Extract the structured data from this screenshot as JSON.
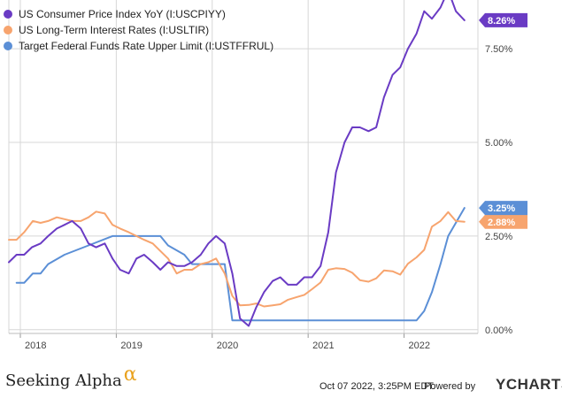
{
  "colors": {
    "cpi": "#6a3bc4",
    "interest": "#f7a46e",
    "fedfunds": "#5b8fd6",
    "grid": "#d7d7d7",
    "alpha_accent": "#e9a21e"
  },
  "footer": {
    "brand": "Seeking Alpha",
    "brand_mark": "α",
    "date": "Oct 07 2022, 3:25PM EDT.",
    "powered_by": "Powered by",
    "ycharts": "YCHARTS"
  },
  "chart_data": {
    "type": "line",
    "x_axis": {
      "min": 2017.88,
      "max": 2022.77,
      "ticks": [
        "2018",
        "2019",
        "2020",
        "2021",
        "2022"
      ],
      "tick_values": [
        2018,
        2019,
        2020,
        2021,
        2022
      ]
    },
    "y_axis": {
      "min": -0.1,
      "max": 8.8,
      "ticks": [
        "0.00%",
        "2.50%",
        "5.00%",
        "7.50%"
      ],
      "tick_values": [
        0,
        2.5,
        5,
        7.5
      ],
      "position": "right"
    },
    "grid": true,
    "legend_position": "top-left",
    "series": [
      {
        "key": "cpi",
        "name": "US Consumer Price Index YoY (I:USCPIYY)",
        "end_label": "8.26%",
        "end_value": 8.26,
        "points": [
          [
            2017.88,
            1.8
          ],
          [
            2017.96,
            2.0
          ],
          [
            2018.04,
            2.0
          ],
          [
            2018.12,
            2.2
          ],
          [
            2018.21,
            2.3
          ],
          [
            2018.29,
            2.5
          ],
          [
            2018.38,
            2.7
          ],
          [
            2018.46,
            2.8
          ],
          [
            2018.54,
            2.9
          ],
          [
            2018.63,
            2.7
          ],
          [
            2018.71,
            2.3
          ],
          [
            2018.79,
            2.2
          ],
          [
            2018.88,
            2.3
          ],
          [
            2018.96,
            1.9
          ],
          [
            2019.04,
            1.6
          ],
          [
            2019.13,
            1.5
          ],
          [
            2019.21,
            1.9
          ],
          [
            2019.29,
            2.0
          ],
          [
            2019.38,
            1.8
          ],
          [
            2019.46,
            1.6
          ],
          [
            2019.54,
            1.8
          ],
          [
            2019.63,
            1.7
          ],
          [
            2019.71,
            1.7
          ],
          [
            2019.79,
            1.8
          ],
          [
            2019.88,
            2.0
          ],
          [
            2019.96,
            2.3
          ],
          [
            2020.04,
            2.5
          ],
          [
            2020.13,
            2.3
          ],
          [
            2020.21,
            1.5
          ],
          [
            2020.29,
            0.3
          ],
          [
            2020.38,
            0.1
          ],
          [
            2020.46,
            0.6
          ],
          [
            2020.54,
            1.0
          ],
          [
            2020.63,
            1.3
          ],
          [
            2020.71,
            1.4
          ],
          [
            2020.79,
            1.2
          ],
          [
            2020.88,
            1.2
          ],
          [
            2020.96,
            1.4
          ],
          [
            2021.04,
            1.4
          ],
          [
            2021.13,
            1.7
          ],
          [
            2021.21,
            2.6
          ],
          [
            2021.29,
            4.2
          ],
          [
            2021.38,
            5.0
          ],
          [
            2021.46,
            5.4
          ],
          [
            2021.54,
            5.4
          ],
          [
            2021.63,
            5.3
          ],
          [
            2021.71,
            5.4
          ],
          [
            2021.79,
            6.2
          ],
          [
            2021.88,
            6.8
          ],
          [
            2021.96,
            7.0
          ],
          [
            2022.04,
            7.5
          ],
          [
            2022.13,
            7.9
          ],
          [
            2022.21,
            8.5
          ],
          [
            2022.29,
            8.3
          ],
          [
            2022.38,
            8.6
          ],
          [
            2022.46,
            9.06
          ],
          [
            2022.54,
            8.5
          ],
          [
            2022.63,
            8.26
          ]
        ]
      },
      {
        "key": "interest",
        "name": "US Long-Term Interest Rates (I:USLTIR)",
        "end_label": "2.88%",
        "end_value": 2.88,
        "points": [
          [
            2017.88,
            2.4
          ],
          [
            2017.96,
            2.4
          ],
          [
            2018.04,
            2.6
          ],
          [
            2018.13,
            2.9
          ],
          [
            2018.21,
            2.85
          ],
          [
            2018.29,
            2.9
          ],
          [
            2018.38,
            3.0
          ],
          [
            2018.46,
            2.95
          ],
          [
            2018.54,
            2.9
          ],
          [
            2018.63,
            2.9
          ],
          [
            2018.71,
            3.0
          ],
          [
            2018.79,
            3.15
          ],
          [
            2018.88,
            3.1
          ],
          [
            2018.96,
            2.8
          ],
          [
            2019.04,
            2.7
          ],
          [
            2019.13,
            2.6
          ],
          [
            2019.21,
            2.5
          ],
          [
            2019.29,
            2.4
          ],
          [
            2019.38,
            2.3
          ],
          [
            2019.46,
            2.1
          ],
          [
            2019.54,
            1.9
          ],
          [
            2019.63,
            1.5
          ],
          [
            2019.71,
            1.6
          ],
          [
            2019.79,
            1.6
          ],
          [
            2019.88,
            1.75
          ],
          [
            2019.96,
            1.8
          ],
          [
            2020.04,
            1.9
          ],
          [
            2020.13,
            1.5
          ],
          [
            2020.21,
            0.9
          ],
          [
            2020.29,
            0.65
          ],
          [
            2020.38,
            0.66
          ],
          [
            2020.46,
            0.7
          ],
          [
            2020.54,
            0.62
          ],
          [
            2020.63,
            0.65
          ],
          [
            2020.71,
            0.68
          ],
          [
            2020.79,
            0.8
          ],
          [
            2020.88,
            0.87
          ],
          [
            2020.96,
            0.93
          ],
          [
            2021.04,
            1.08
          ],
          [
            2021.13,
            1.26
          ],
          [
            2021.21,
            1.6
          ],
          [
            2021.29,
            1.64
          ],
          [
            2021.38,
            1.62
          ],
          [
            2021.46,
            1.52
          ],
          [
            2021.54,
            1.32
          ],
          [
            2021.63,
            1.28
          ],
          [
            2021.71,
            1.37
          ],
          [
            2021.79,
            1.58
          ],
          [
            2021.88,
            1.56
          ],
          [
            2021.96,
            1.47
          ],
          [
            2022.04,
            1.76
          ],
          [
            2022.13,
            1.93
          ],
          [
            2022.21,
            2.13
          ],
          [
            2022.29,
            2.75
          ],
          [
            2022.38,
            2.9
          ],
          [
            2022.46,
            3.14
          ],
          [
            2022.54,
            2.9
          ],
          [
            2022.63,
            2.88
          ]
        ]
      },
      {
        "key": "fedfunds",
        "name": "Target Federal Funds Rate Upper Limit (I:USTFFRUL)",
        "end_label": "3.25%",
        "end_value": 3.25,
        "points": [
          [
            2017.96,
            1.25
          ],
          [
            2018.04,
            1.25
          ],
          [
            2018.13,
            1.5
          ],
          [
            2018.21,
            1.5
          ],
          [
            2018.29,
            1.75
          ],
          [
            2018.46,
            2.0
          ],
          [
            2018.71,
            2.25
          ],
          [
            2018.96,
            2.5
          ],
          [
            2019.46,
            2.5
          ],
          [
            2019.54,
            2.25
          ],
          [
            2019.71,
            2.0
          ],
          [
            2019.79,
            1.75
          ],
          [
            2020.13,
            1.75
          ],
          [
            2020.17,
            1.0
          ],
          [
            2020.21,
            0.25
          ],
          [
            2022.13,
            0.25
          ],
          [
            2022.21,
            0.5
          ],
          [
            2022.29,
            1.0
          ],
          [
            2022.38,
            1.75
          ],
          [
            2022.46,
            2.5
          ],
          [
            2022.63,
            3.25
          ]
        ]
      }
    ]
  }
}
